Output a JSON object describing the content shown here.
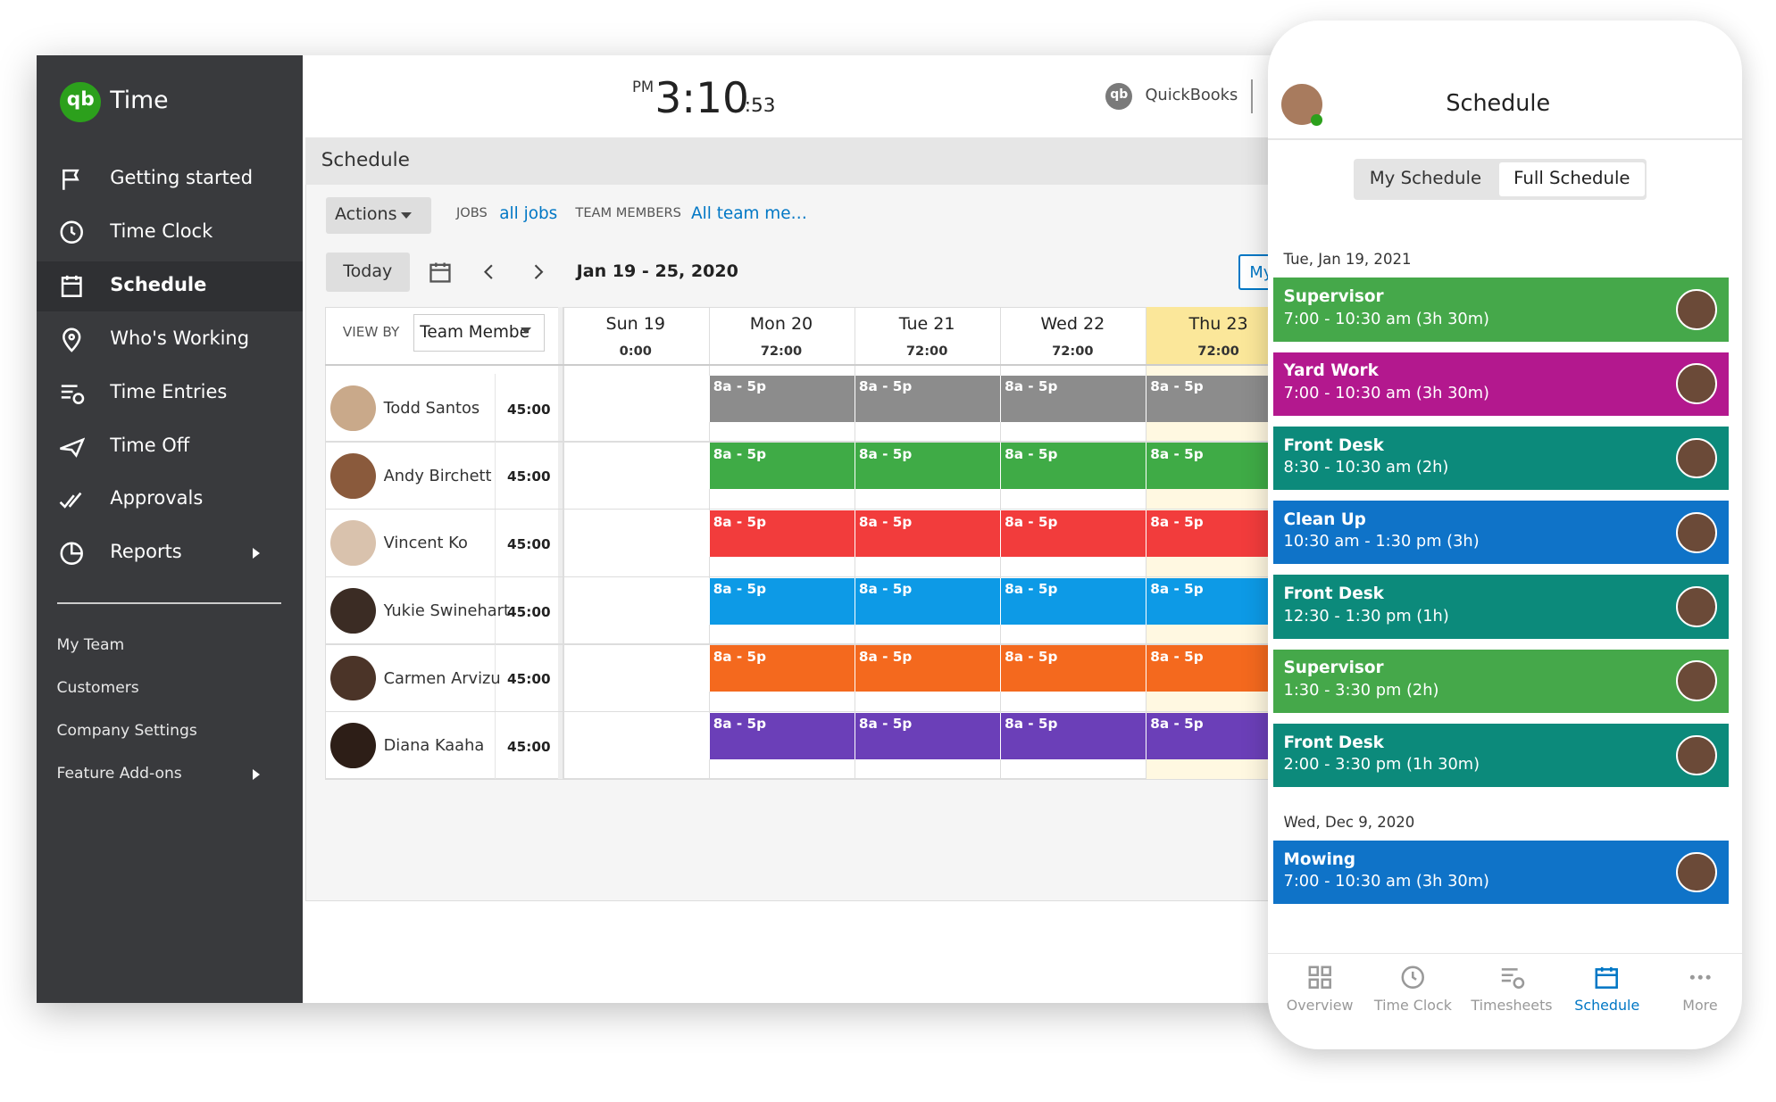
{
  "sidebar": {
    "logo": "qb",
    "brand": "Time",
    "nav": [
      "Getting started",
      "Time Clock",
      "Schedule",
      "Who's Working",
      "Time Entries",
      "Time Off",
      "Approvals",
      "Reports"
    ],
    "secondary": [
      "My Team",
      "Customers",
      "Company Settings",
      "Feature Add-ons"
    ]
  },
  "header": {
    "clock_period": "PM",
    "clock_time": "3:10",
    "clock_seconds": ":53",
    "product_logo": "qb",
    "product": "QuickBooks"
  },
  "schedule": {
    "title": "Schedule",
    "actions": "Actions",
    "jobs_label": "JOBS",
    "jobs_value": "all jobs",
    "members_label": "TEAM MEMBERS",
    "members_value": "All team me…",
    "today": "Today",
    "date_range": "Jan 19 - 25, 2020",
    "view_button": "My",
    "view_by_label": "VIEW BY",
    "view_by_value": "Team Membe",
    "days": [
      {
        "name": "Sun 19",
        "hours": "0:00"
      },
      {
        "name": "Mon 20",
        "hours": "72:00"
      },
      {
        "name": "Tue 21",
        "hours": "72:00"
      },
      {
        "name": "Wed 22",
        "hours": "72:00"
      },
      {
        "name": "Thu 23",
        "hours": "72:00"
      }
    ],
    "members": [
      {
        "name": "Todd Santos",
        "hours": "45:00",
        "color": "#8c8c8c",
        "shifts": [
          null,
          "8a - 5p",
          "8a - 5p",
          "8a - 5p",
          "8a - 5p"
        ]
      },
      {
        "name": "Andy Birchett",
        "hours": "45:00",
        "color": "#3fab46",
        "shifts": [
          null,
          "8a - 5p",
          "8a - 5p",
          "8a - 5p",
          "8a - 5p"
        ]
      },
      {
        "name": "Vincent Ko",
        "hours": "45:00",
        "color": "#f23c3c",
        "shifts": [
          null,
          "8a - 5p",
          "8a - 5p",
          "8a - 5p",
          "8a - 5p"
        ]
      },
      {
        "name": "Yukie Swinehart",
        "hours": "45:00",
        "color": "#0d9ae6",
        "shifts": [
          null,
          "8a - 5p",
          "8a - 5p",
          "8a - 5p",
          "8a - 5p"
        ]
      },
      {
        "name": "Carmen Arvizu",
        "hours": "45:00",
        "color": "#f4691e",
        "shifts": [
          null,
          "8a - 5p",
          "8a - 5p",
          "8a - 5p",
          "8a - 5p"
        ]
      },
      {
        "name": "Diana Kaaha",
        "hours": "45:00",
        "color": "#6b3fb8",
        "shifts": [
          null,
          "8a - 5p",
          "8a - 5p",
          "8a - 5p",
          "8a - 5p"
        ]
      }
    ]
  },
  "phone": {
    "title": "Schedule",
    "tabs": [
      "My Schedule",
      "Full Schedule"
    ],
    "groups": [
      {
        "date": "Tue, Jan 19, 2021",
        "shifts": [
          {
            "title": "Supervisor",
            "time": "7:00 - 10:30 am (3h 30m)",
            "color": "#45a84a"
          },
          {
            "title": "Yard Work",
            "time": "7:00 - 10:30 am (3h 30m)",
            "color": "#b3188e"
          },
          {
            "title": "Front Desk",
            "time": "8:30 - 10:30 am (2h)",
            "color": "#0c8a7b"
          },
          {
            "title": "Clean Up",
            "time": "10:30 am - 1:30 pm (3h)",
            "color": "#0f73c8"
          },
          {
            "title": "Front Desk",
            "time": "12:30 - 1:30 pm (1h)",
            "color": "#0c8a7b"
          },
          {
            "title": "Supervisor",
            "time": "1:30 - 3:30 pm (2h)",
            "color": "#45a84a"
          },
          {
            "title": "Front Desk",
            "time": "2:00 - 3:30 pm (1h 30m)",
            "color": "#0c8a7b"
          }
        ]
      },
      {
        "date": "Wed, Dec 9, 2020",
        "shifts": [
          {
            "title": "Mowing",
            "time": "7:00 - 10:30 am (3h 30m)",
            "color": "#0f73c8"
          }
        ]
      }
    ],
    "nav": [
      "Overview",
      "Time Clock",
      "Timesheets",
      "Schedule",
      "More"
    ]
  }
}
